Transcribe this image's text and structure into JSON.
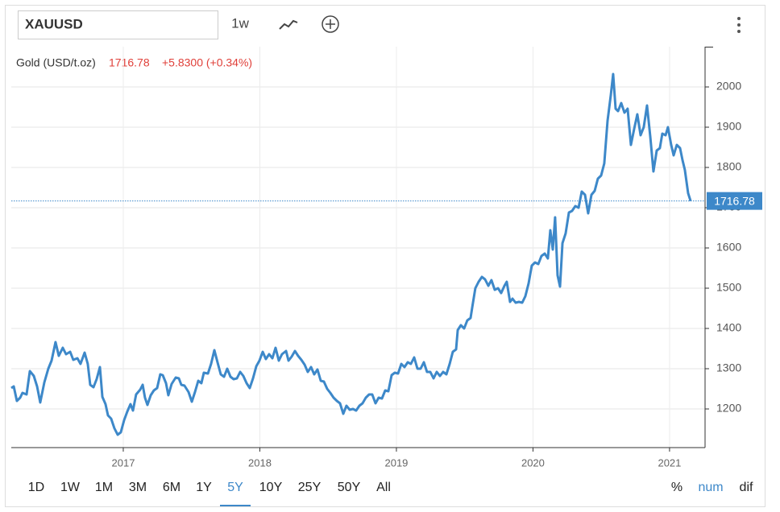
{
  "toolbar": {
    "symbol": "XAUUSD",
    "interval": "1w"
  },
  "quote": {
    "name": "Gold (USD/t.oz)",
    "price": 1716.78,
    "change": "+5.8300 (+0.34%)"
  },
  "chart_data": {
    "type": "line",
    "color": "#3d88c9",
    "grid": true,
    "xlim": [
      2016.18,
      2021.26
    ],
    "xticks": [
      2017,
      2018,
      2019,
      2020,
      2021
    ],
    "ylim": [
      1104,
      2100
    ],
    "yticks": [
      1200,
      1300,
      1400,
      1500,
      1600,
      1700,
      1800,
      1900,
      2000
    ],
    "x": [
      2016.18,
      2016.198,
      2016.221,
      2016.245,
      2016.262,
      2016.292,
      2016.316,
      2016.345,
      2016.369,
      2016.392,
      2016.422,
      2016.451,
      2016.475,
      2016.504,
      2016.528,
      2016.557,
      2016.581,
      2016.611,
      2016.634,
      2016.664,
      2016.687,
      2016.717,
      2016.74,
      2016.758,
      2016.782,
      2016.805,
      2016.829,
      2016.847,
      2016.87,
      2016.888,
      2016.911,
      2016.935,
      2016.959,
      2016.982,
      2017.006,
      2017.03,
      2017.053,
      2017.071,
      2017.094,
      2017.124,
      2017.142,
      2017.159,
      2017.177,
      2017.201,
      2017.224,
      2017.248,
      2017.271,
      2017.289,
      2017.313,
      2017.33,
      2017.354,
      2017.384,
      2017.407,
      2017.425,
      2017.448,
      2017.478,
      2017.502,
      2017.525,
      2017.549,
      2017.572,
      2017.59,
      2017.62,
      2017.643,
      2017.667,
      2017.69,
      2017.714,
      2017.738,
      2017.761,
      2017.785,
      2017.808,
      2017.832,
      2017.856,
      2017.879,
      2017.903,
      2017.926,
      2017.95,
      2017.974,
      2017.997,
      2018.021,
      2018.044,
      2018.068,
      2018.092,
      2018.115,
      2018.139,
      2018.162,
      2018.192,
      2018.21,
      2018.233,
      2018.257,
      2018.28,
      2018.304,
      2018.328,
      2018.351,
      2018.375,
      2018.398,
      2018.422,
      2018.446,
      2018.469,
      2018.493,
      2018.516,
      2018.54,
      2018.564,
      2018.587,
      2018.611,
      2018.634,
      2018.658,
      2018.682,
      2018.705,
      2018.729,
      2018.752,
      2018.776,
      2018.8,
      2018.823,
      2018.847,
      2018.87,
      2018.894,
      2018.918,
      2018.941,
      2018.965,
      2018.988,
      2019.012,
      2019.036,
      2019.059,
      2019.083,
      2019.106,
      2019.13,
      2019.154,
      2019.177,
      2019.201,
      2019.224,
      2019.248,
      2019.272,
      2019.295,
      2019.319,
      2019.342,
      2019.366,
      2019.39,
      2019.413,
      2019.437,
      2019.449,
      2019.472,
      2019.496,
      2019.519,
      2019.543,
      2019.555,
      2019.578,
      2019.602,
      2019.626,
      2019.649,
      2019.673,
      2019.696,
      2019.72,
      2019.744,
      2019.767,
      2019.791,
      2019.808,
      2019.832,
      2019.85,
      2019.873,
      2019.897,
      2019.921,
      2019.944,
      2019.968,
      2019.991,
      2020.015,
      2020.039,
      2020.062,
      2020.086,
      2020.109,
      2020.127,
      2020.145,
      2020.162,
      2020.18,
      2020.198,
      2020.216,
      2020.239,
      2020.263,
      2020.286,
      2020.31,
      2020.334,
      2020.357,
      2020.381,
      2020.404,
      2020.428,
      2020.452,
      2020.475,
      2020.499,
      2020.522,
      2020.546,
      2020.57,
      2020.587,
      2020.605,
      2020.623,
      2020.646,
      2020.67,
      2020.693,
      2020.717,
      2020.741,
      2020.764,
      2020.788,
      2020.811,
      2020.835,
      2020.859,
      2020.882,
      2020.906,
      2020.929,
      2020.947,
      2020.971,
      2020.988,
      2021.012,
      2021.03,
      2021.053,
      2021.077,
      2021.095,
      2021.112,
      2021.136,
      2021.154
    ],
    "values": [
      1252,
      1256,
      1220,
      1228,
      1240,
      1236,
      1294,
      1282,
      1256,
      1216,
      1266,
      1300,
      1320,
      1366,
      1332,
      1352,
      1336,
      1342,
      1322,
      1326,
      1312,
      1340,
      1312,
      1260,
      1254,
      1274,
      1304,
      1230,
      1212,
      1184,
      1176,
      1152,
      1136,
      1142,
      1172,
      1194,
      1212,
      1196,
      1236,
      1248,
      1260,
      1228,
      1210,
      1234,
      1246,
      1252,
      1286,
      1284,
      1264,
      1234,
      1262,
      1278,
      1276,
      1260,
      1258,
      1242,
      1218,
      1242,
      1270,
      1264,
      1290,
      1288,
      1312,
      1346,
      1316,
      1286,
      1280,
      1300,
      1280,
      1274,
      1276,
      1292,
      1282,
      1264,
      1252,
      1276,
      1306,
      1320,
      1342,
      1324,
      1336,
      1326,
      1352,
      1320,
      1336,
      1344,
      1320,
      1330,
      1344,
      1332,
      1322,
      1310,
      1292,
      1304,
      1286,
      1298,
      1270,
      1268,
      1250,
      1240,
      1228,
      1220,
      1214,
      1188,
      1208,
      1198,
      1200,
      1196,
      1208,
      1214,
      1228,
      1236,
      1236,
      1214,
      1228,
      1226,
      1246,
      1244,
      1284,
      1290,
      1288,
      1312,
      1304,
      1316,
      1312,
      1328,
      1300,
      1300,
      1316,
      1292,
      1292,
      1276,
      1292,
      1282,
      1292,
      1286,
      1312,
      1342,
      1348,
      1396,
      1408,
      1400,
      1420,
      1426,
      1452,
      1500,
      1516,
      1528,
      1522,
      1506,
      1520,
      1496,
      1500,
      1488,
      1506,
      1516,
      1466,
      1474,
      1464,
      1466,
      1464,
      1480,
      1512,
      1556,
      1564,
      1560,
      1580,
      1586,
      1574,
      1644,
      1596,
      1676,
      1532,
      1504,
      1612,
      1636,
      1688,
      1692,
      1704,
      1700,
      1740,
      1732,
      1686,
      1732,
      1742,
      1772,
      1780,
      1810,
      1916,
      1980,
      2032,
      1946,
      1940,
      1960,
      1936,
      1946,
      1856,
      1896,
      1932,
      1880,
      1900,
      1954,
      1876,
      1790,
      1842,
      1848,
      1884,
      1880,
      1900,
      1856,
      1830,
      1856,
      1848,
      1818,
      1794,
      1736,
      1716.78
    ]
  },
  "ranges": [
    "1D",
    "1W",
    "1M",
    "3M",
    "6M",
    "1Y",
    "5Y",
    "10Y",
    "25Y",
    "50Y",
    "All"
  ],
  "selected_range": "5Y",
  "modes": [
    "%",
    "num",
    "dif"
  ],
  "selected_mode": "num"
}
